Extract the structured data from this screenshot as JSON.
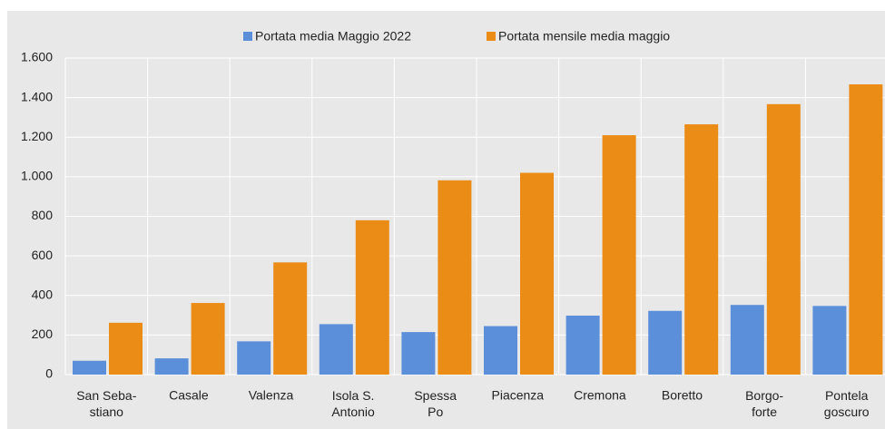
{
  "chart_data": {
    "type": "bar",
    "categories": [
      "San Seba-\nstiano",
      "Casale",
      "Valenza",
      "Isola S.\nAntonio",
      "Spessa\nPo",
      "Piacenza",
      "Cremona",
      "Boretto",
      "Borgo-\nforte",
      "Pontela\ngoscuro"
    ],
    "series": [
      {
        "name": "Portata media Maggio 2022",
        "color": "#5b8fd9",
        "values": [
          70,
          82,
          168,
          255,
          215,
          245,
          298,
          322,
          352,
          347
        ]
      },
      {
        "name": "Portata mensile media maggio",
        "color": "#eb8c17",
        "values": [
          262,
          362,
          567,
          780,
          982,
          1020,
          1210,
          1265,
          1367,
          1467
        ]
      }
    ],
    "ylim": [
      0,
      1600
    ],
    "yticks": [
      0,
      200,
      400,
      600,
      800,
      {
        "value": 1000,
        "label": "1.000"
      },
      {
        "value": 1200,
        "label": "1.200"
      },
      {
        "value": 1400,
        "label": "1.400"
      },
      {
        "value": 1600,
        "label": "1.600"
      }
    ],
    "grid": true,
    "legend": "top"
  }
}
